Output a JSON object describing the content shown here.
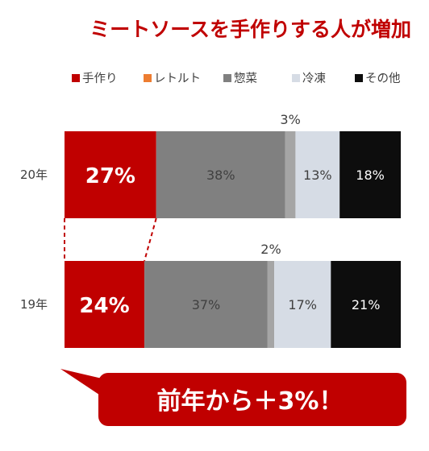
{
  "chart_data": {
    "type": "bar",
    "orientation": "horizontal",
    "stacked": true,
    "normalized": true,
    "title": "ミートソースを手作りする人が増加",
    "categories": [
      "20年",
      "19年"
    ],
    "series": [
      {
        "name": "手作り",
        "values": [
          27,
          24
        ],
        "labels": [
          "27%",
          "24%"
        ],
        "color": "#c00000"
      },
      {
        "name": "レトルト",
        "values": [
          0,
          0
        ],
        "labels": [
          "",
          ""
        ],
        "color": "#ed7d31"
      },
      {
        "name": "惣菜",
        "values": [
          38,
          37
        ],
        "labels": [
          "38%",
          "37%"
        ],
        "color": "#808080"
      },
      {
        "name": "",
        "values": [
          3,
          2
        ],
        "labels": [
          "3%",
          "2%"
        ],
        "color": "#a5a5a5"
      },
      {
        "name": "冷凍",
        "values": [
          13,
          17
        ],
        "labels": [
          "13%",
          "17%"
        ],
        "color": "#d6dce5"
      },
      {
        "name": "その他",
        "values": [
          18,
          21
        ],
        "labels": [
          "18%",
          "21%"
        ],
        "color": "#0d0d0d"
      }
    ],
    "legend_position": "top",
    "grid": false,
    "connector_between_series": "手作り",
    "callout": "前年から＋3%！",
    "callout_color": "#c00000"
  }
}
